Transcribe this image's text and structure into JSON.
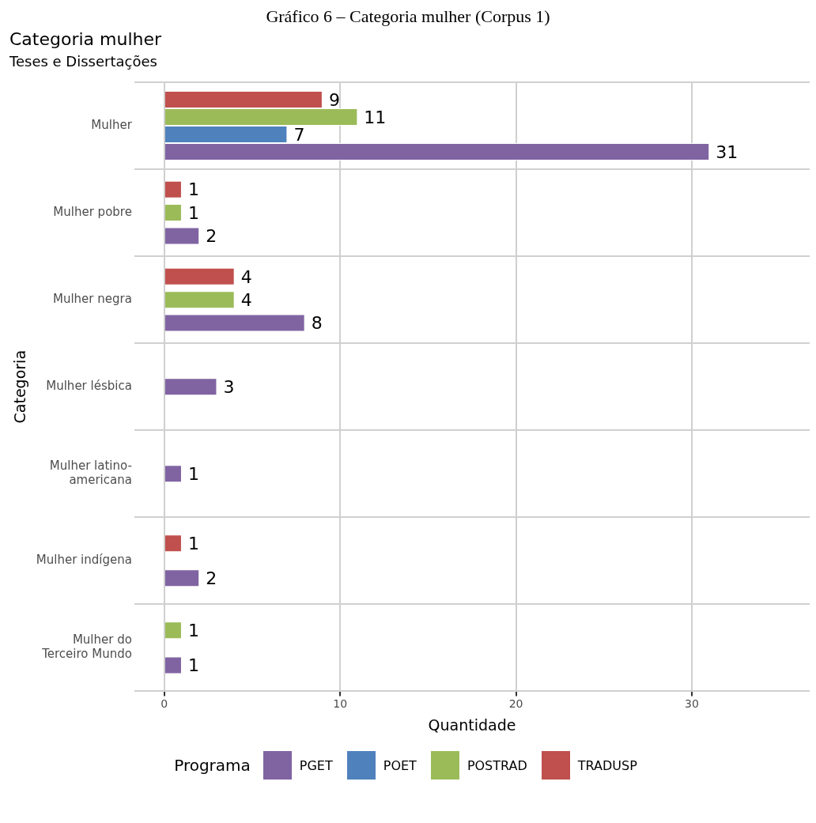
{
  "chart_data": {
    "type": "bar",
    "orientation": "horizontal",
    "title": "Categoria mulher",
    "subtitle": "Teses e Dissertações",
    "xlabel": "Quantidade",
    "ylabel": "Categoria",
    "legend_title": "Programa",
    "annotations": [
      "Gráfico 6 – Categoria mulher (Corpus 1)"
    ],
    "categories": [
      "Mulher",
      "Mulher pobre",
      "Mulher negra",
      "Mulher lésbica",
      "Mulher latino-americana",
      "Mulher indígena",
      "Mulher do Terceiro Mundo"
    ],
    "series": [
      {
        "name": "PGET",
        "color": "#8064a2",
        "values": [
          31,
          2,
          8,
          3,
          1,
          2,
          1
        ]
      },
      {
        "name": "POET",
        "color": "#4f81bd",
        "values": [
          7,
          null,
          null,
          null,
          null,
          null,
          null
        ]
      },
      {
        "name": "POSTRAD",
        "color": "#9bbb59",
        "values": [
          11,
          1,
          4,
          null,
          null,
          null,
          1
        ]
      },
      {
        "name": "TRADUSP",
        "color": "#c0504d",
        "values": [
          9,
          1,
          4,
          null,
          null,
          1,
          null
        ]
      }
    ],
    "xlim": [
      -1.7,
      36.7
    ],
    "xticks": [
      0,
      10,
      20,
      30
    ],
    "grid": true,
    "legend": "bottom",
    "data_labels": true
  }
}
